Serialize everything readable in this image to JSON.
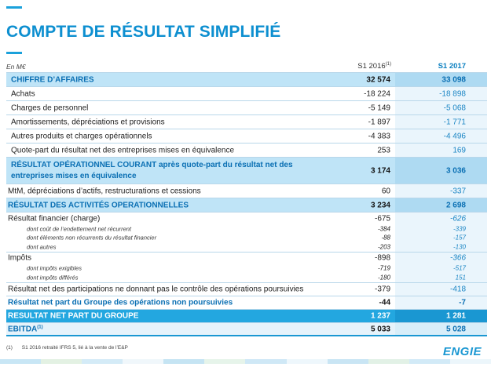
{
  "title": "COMPTE DE RÉSULTAT SIMPLIFIÉ",
  "header": {
    "unit": "En M€",
    "col1": "S1 2016",
    "col1_sup": "(1)",
    "col2": "S1 2017"
  },
  "rows": [
    {
      "label": "CHIFFRE D’AFFAIRES",
      "v1": "32 574",
      "v2": "33 098"
    },
    {
      "label": "Achats",
      "v1": "-18 224",
      "v2": "-18 898"
    },
    {
      "label": "Charges de personnel",
      "v1": "-5 149",
      "v2": "-5 068"
    },
    {
      "label": "Amortissements, dépréciations et provisions",
      "v1": "-1 897",
      "v2": "-1 771"
    },
    {
      "label": "Autres produits et charges opérationnels",
      "v1": "-4 383",
      "v2": "-4 496"
    },
    {
      "label": "Quote-part du résultat net des entreprises mises en équivalence",
      "v1": "253",
      "v2": "169"
    },
    {
      "label": "RÉSULTAT OPÉRATIONNEL COURANT après quote-part du résultat net des entreprises mises en équivalence",
      "v1": "3 174",
      "v2": "3 036"
    },
    {
      "label": "MtM, dépréciations d’actifs, restructurations et cessions",
      "v1": "60",
      "v2": "-337"
    },
    {
      "label": "RÉSULTAT DES ACTIVITÉS OPERATIONNELLES",
      "v1": "3 234",
      "v2": "2 698"
    },
    {
      "label": "Résultat financier (charge)",
      "v1": "-675",
      "v2": "-626"
    },
    {
      "label": "dont coût de l’endettement net récurrent",
      "v1": "-384",
      "v2": "-339"
    },
    {
      "label": "dont éléments non récurrents du résultat financier",
      "v1": "-88",
      "v2": "-157"
    },
    {
      "label": "dont autres",
      "v1": "-203",
      "v2": "-130"
    },
    {
      "label": "Impôts",
      "v1": "-898",
      "v2": "-366"
    },
    {
      "label": "dont impôts exigibles",
      "v1": "-719",
      "v2": "-517"
    },
    {
      "label": "dont impôts différés",
      "v1": "-180",
      "v2": "151"
    },
    {
      "label": "Résultat net des participations ne donnant pas le contrôle des opérations poursuivies",
      "v1": "-379",
      "v2": "-418"
    },
    {
      "label": "Résultat net part du Groupe des opérations non poursuivies",
      "v1": "-44",
      "v2": "-7"
    },
    {
      "label": "RESULTAT NET PART DU GROUPE",
      "v1": "1 237",
      "v2": "1 281"
    },
    {
      "label": "EBITDA",
      "label_sup": "(1)",
      "v1": "5 033",
      "v2": "5 028"
    }
  ],
  "footnote": {
    "num": "(1)",
    "text": "S1 2016 retraité IFRS 5, lié à la vente de l’E&P"
  },
  "logo": "ENGIE",
  "colors": {
    "accent": "#0d8fd0",
    "highlight_row": "#bfe4f7",
    "total_row": "#23a7e0"
  }
}
